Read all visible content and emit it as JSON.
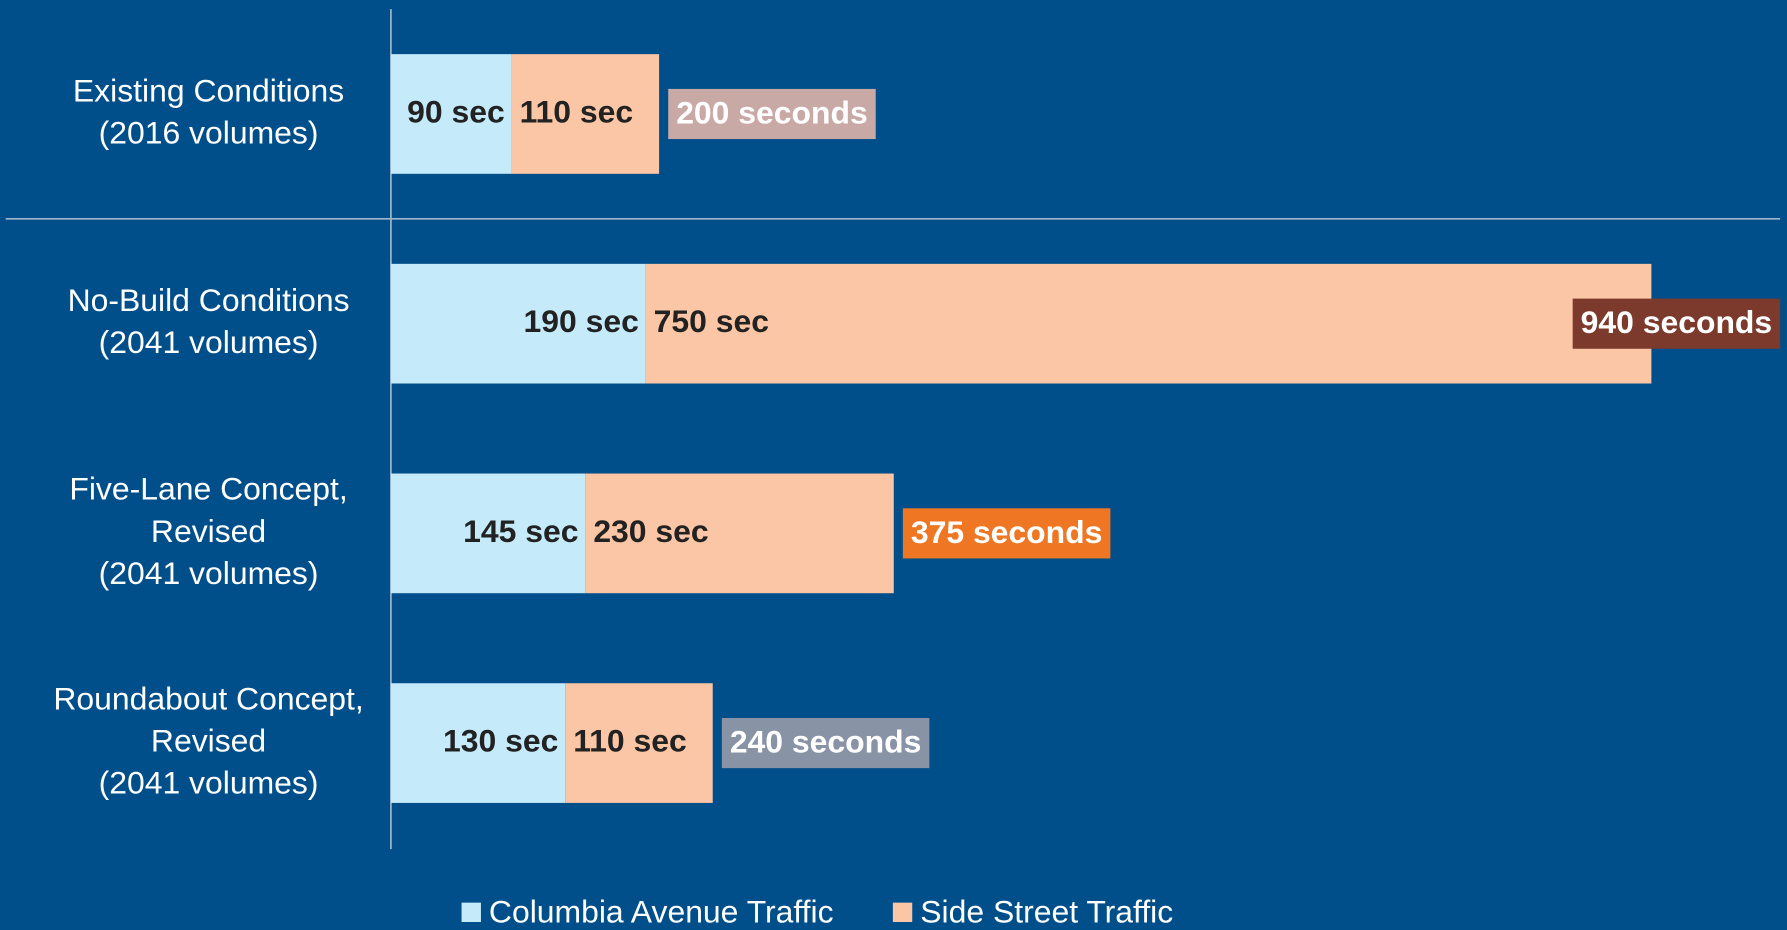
{
  "chart_data": {
    "type": "stacked_bar_horizontal",
    "categories": [
      [
        "Existing Conditions",
        "(2016 volumes)"
      ],
      [
        "No-Build Conditions",
        "(2041 volumes)"
      ],
      [
        "Five-Lane Concept,",
        "Revised",
        "(2041 volumes)"
      ],
      [
        "Roundabout Concept,",
        "Revised",
        "(2041 volumes)"
      ]
    ],
    "series": [
      {
        "name": "Columbia Avenue Traffic",
        "color": "#c5ebfb",
        "values": [
          90,
          190,
          145,
          130
        ],
        "value_labels": [
          "90 sec",
          "190 sec",
          "145 sec",
          "130 sec"
        ]
      },
      {
        "name": "Side Street Traffic",
        "color": "#fbc6a5",
        "values": [
          110,
          750,
          230,
          110
        ],
        "value_labels": [
          "110 sec",
          "750 sec",
          "230 sec",
          "110 sec"
        ]
      }
    ],
    "totals": {
      "values": [
        200,
        940,
        375,
        240
      ],
      "value_labels": [
        "200 seconds",
        "940 seconds",
        "375 seconds",
        "240 seconds"
      ],
      "colors": [
        "#c9a9a6",
        "#7b3a2c",
        "#ef7622",
        "#8893a6"
      ]
    },
    "xlim": [
      0,
      1000
    ],
    "legend": "bottom"
  }
}
